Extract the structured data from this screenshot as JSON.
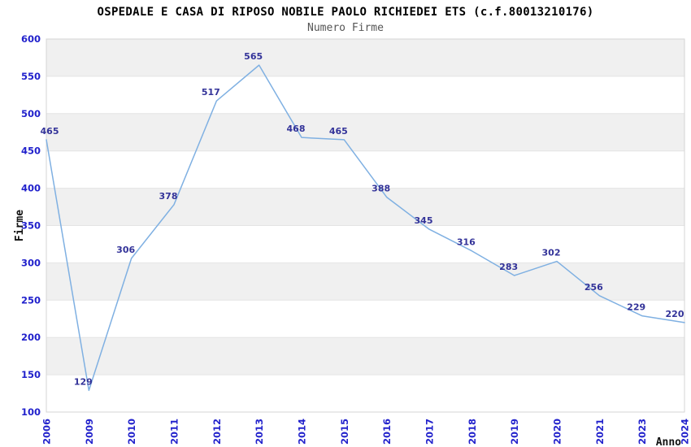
{
  "header": {
    "title": "OSPEDALE E CASA DI RIPOSO NOBILE PAOLO RICHIEDEI ETS (c.f.80013210176)",
    "subtitle": "Numero Firme"
  },
  "chart_data": {
    "type": "line",
    "title": "OSPEDALE E CASA DI RIPOSO NOBILE PAOLO RICHIEDEI ETS (c.f.80013210176)",
    "subtitle": "Numero Firme",
    "xlabel": "Anno",
    "ylabel": "Firme",
    "categories": [
      "2006",
      "2009",
      "2010",
      "2011",
      "2012",
      "2013",
      "2014",
      "2015",
      "2016",
      "2017",
      "2018",
      "2019",
      "2020",
      "2021",
      "2023",
      "2024"
    ],
    "values": [
      465,
      129,
      306,
      378,
      517,
      565,
      468,
      465,
      388,
      345,
      316,
      283,
      302,
      256,
      229,
      220
    ],
    "ylim": [
      100,
      600
    ],
    "ytick_step": 50,
    "y_ticks": [
      "100",
      "150",
      "200",
      "250",
      "300",
      "350",
      "400",
      "450",
      "500",
      "550",
      "600"
    ],
    "grid": "alternating-horizontal-bands",
    "legend": "none",
    "show_point_labels": true,
    "colors": {
      "line": "#7fb0e2",
      "tick_label": "#2222cc",
      "data_label": "#333399",
      "band_gray": "#f0f0f0",
      "band_white": "#ffffff",
      "gridline": "#e4e4e4",
      "plot_border": "#d4d4d4",
      "title": "#000000",
      "subtitle": "#555555",
      "axis_title": "#111111"
    }
  }
}
